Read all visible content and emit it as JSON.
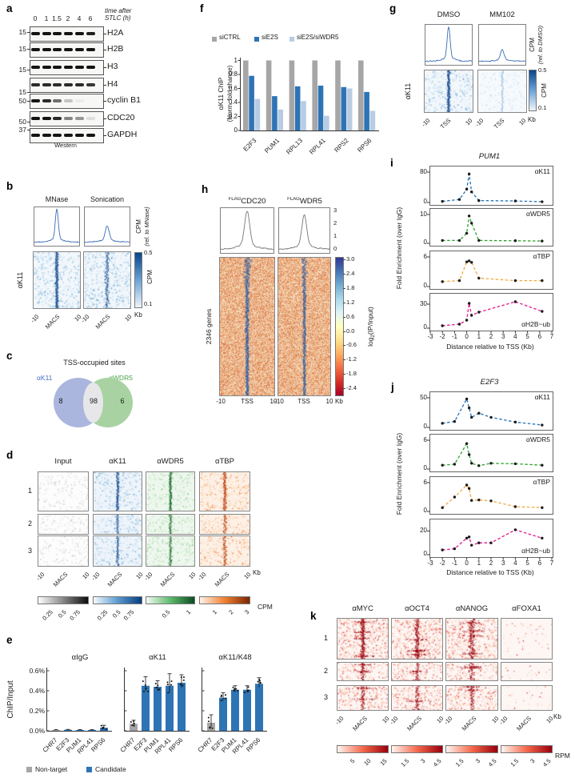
{
  "colors": {
    "bar_gray": "#a6a6a6",
    "bar_blue": "#2e74b5",
    "bar_lightblue": "#b8cce4",
    "line_blue": "#2271b5",
    "line_green": "#2ca02c",
    "line_orange": "#f2a93b",
    "line_magenta": "#e6148c",
    "heat_blue_stripe": "#1a4f8f",
    "heat_green_stripe": "#19692c",
    "heat_orange_stripe": "#b83c0a",
    "heat_red_stripe": "#99000d",
    "h_stripe_blue": "#2c5fa5",
    "profile_blue": "#3a6db5",
    "profile_gray": "#777777",
    "venn_blue_fill": "#aab6dd",
    "venn_green_fill": "#a8d2a2",
    "venn_overlap_fill": "#e7e7ea",
    "venn_blue_text": "#4472c4",
    "venn_green_text": "#47a447"
  },
  "panels": {
    "a": {
      "letter": "a",
      "header1": "time after",
      "header2": "STLC (h)",
      "lanes": [
        "0",
        "1",
        "1.5",
        "2",
        "4",
        "6"
      ],
      "rows": [
        {
          "mw": "15",
          "label": "H2A",
          "bands": [
            1,
            1,
            1,
            1,
            1,
            0.95
          ]
        },
        {
          "mw": "15",
          "label": "H2B",
          "bands": [
            1,
            1,
            1,
            1,
            1,
            1
          ]
        },
        {
          "mw": "15",
          "label": "H3",
          "bands": [
            1,
            1,
            1,
            1,
            1,
            1
          ]
        },
        {
          "mw": "15",
          "label": "H4",
          "bands": [
            0.9,
            0.9,
            0.9,
            0.9,
            0.9,
            0.85
          ]
        },
        {
          "mw": "50",
          "label": "cyclin B1",
          "bands": [
            1,
            0.9,
            0.6,
            0.22,
            0.05,
            0
          ]
        },
        {
          "mw": "50",
          "label": "CDC20",
          "bands": [
            1,
            1,
            0.9,
            0.5,
            0.42,
            0.1
          ]
        },
        {
          "mw": "37",
          "label": "GAPDH",
          "bands": [
            1,
            1,
            1,
            1,
            1,
            1
          ]
        }
      ],
      "footer": "Western"
    },
    "b": {
      "letter": "b",
      "col_titles": [
        "MNase",
        "Sonication"
      ],
      "row_label": "αK11",
      "profile_ylabel1": "CPM",
      "profile_ylabel2": "(rel. to MNase)",
      "colorbar_top": "0.5",
      "colorbar_bottom": "0.1",
      "colorbar_label": "CPM",
      "xticks": [
        "-10",
        "MACS",
        "10"
      ],
      "x_unit": "Kb"
    },
    "c": {
      "letter": "c",
      "title": "TSS-occupied sites",
      "left_label": "αK11",
      "right_label": "αWDR5",
      "left_only": "8",
      "overlap": "98",
      "right_only": "6"
    },
    "d": {
      "letter": "d",
      "col_titles": [
        "Input",
        "αK11",
        "αWDR5",
        "αTBP"
      ],
      "row_labels": [
        "1",
        "2",
        "3"
      ],
      "xticks": [
        "-10",
        "MACS",
        "10"
      ],
      "x_unit": "Kb",
      "colorbar_ticks": [
        [
          "0.25",
          "0.5",
          "0.75"
        ],
        [
          "0.25",
          "0.5",
          "0.75"
        ],
        [
          "0.5",
          "1"
        ],
        [
          "1",
          "2",
          "3"
        ]
      ],
      "colorbar_unit": "CPM"
    },
    "e": {
      "letter": "e"
    },
    "f": {
      "letter": "f",
      "ylabel1": "αK11 ChIP",
      "ylabel2": "(Norm. fold change)"
    },
    "g": {
      "letter": "g",
      "col_titles": [
        "DMSO",
        "MM102"
      ],
      "row_label": "αK11",
      "profile_ylabel1": "CPM",
      "profile_ylabel2": "(rel. to DMSO)",
      "colorbar_top": "0.5",
      "colorbar_bottom": "0.1",
      "colorbar_label": "CPM",
      "xticks": [
        "-10",
        "TSS",
        "10"
      ],
      "x_unit": "Kb"
    },
    "h": {
      "letter": "h",
      "col_titles": [
        {
          "sup": "FLAG",
          "text": "CDC20"
        },
        {
          "sup": "FLAG",
          "text": "WDR5"
        }
      ],
      "profile_yticks": [
        "3",
        "2",
        "1",
        "0"
      ],
      "row_label": "2346 genes",
      "colorbar_ticks": [
        "3.0",
        "2.4",
        "1.8",
        "1.2",
        "0.6",
        "0.0",
        "-0.6",
        "-1.2",
        "-1.8",
        "-2.4"
      ],
      "colorbar_label": {
        "pre": "log",
        "sub": "2",
        "post": "(IP/Input)"
      },
      "xticks": [
        "-10",
        "TSS",
        "10"
      ],
      "x_unit": "Kb"
    },
    "i": {
      "letter": "i"
    },
    "j": {
      "letter": "j"
    },
    "k": {
      "letter": "k",
      "col_titles": [
        "αMYC",
        "αOCT4",
        "αNANOG",
        "αFOXA1"
      ],
      "row_labels": [
        "1",
        "2",
        "3"
      ],
      "xticks": [
        "-10",
        "MACS",
        "10"
      ],
      "x_unit": "Kb",
      "colorbar_ticks": [
        [
          "5",
          "10",
          "15"
        ],
        [
          "1.5",
          "3",
          "4.5"
        ],
        [
          "1.5",
          "3",
          "4.5"
        ],
        [
          "1.5",
          "3",
          "4.5"
        ]
      ],
      "colorbar_unit": "RPM"
    }
  },
  "chart_data": [
    {
      "id": "a",
      "type": "table",
      "title": "Western blot, time after STLC (h)",
      "timepoints_h": [
        0,
        1,
        1.5,
        2,
        4,
        6
      ],
      "proteins": [
        "H2A",
        "H2B",
        "H3",
        "H4",
        "cyclin B1",
        "CDC20",
        "GAPDH"
      ],
      "mw_kda": [
        15,
        15,
        15,
        15,
        50,
        50,
        37
      ],
      "footer": "Western"
    },
    {
      "id": "b",
      "type": "heatmap",
      "columns": [
        "MNase",
        "Sonication"
      ],
      "signal": "αK11",
      "center_label": "MACS",
      "window_kb": [
        -10,
        10
      ],
      "colorbar": {
        "min": 0.1,
        "max": 0.5,
        "unit": "CPM"
      },
      "profile_peak_rel": [
        1.0,
        0.45
      ]
    },
    {
      "id": "c",
      "type": "pie",
      "title": "TSS-occupied sites",
      "sets": [
        {
          "label": "αK11",
          "only": 8
        },
        {
          "label": "αWDR5",
          "only": 6
        }
      ],
      "overlap": 98
    },
    {
      "id": "d",
      "type": "heatmap",
      "columns": [
        "Input",
        "αK11",
        "αWDR5",
        "αTBP"
      ],
      "rows": [
        "1",
        "2",
        "3"
      ],
      "center_label": "MACS",
      "window_kb": [
        -10,
        10
      ],
      "colorbars": [
        {
          "ticks": [
            0.25,
            0.5,
            0.75
          ]
        },
        {
          "ticks": [
            0.25,
            0.5,
            0.75
          ]
        },
        {
          "ticks": [
            0.5,
            1
          ]
        },
        {
          "ticks": [
            1,
            2,
            3
          ]
        }
      ],
      "unit": "CPM"
    },
    {
      "id": "e",
      "type": "bar",
      "ylabel": "ChIP/Input",
      "ylim": [
        0,
        0.6
      ],
      "yticks": [
        "0.6%",
        "0.4%",
        "0.2%",
        "0.0%"
      ],
      "categories": [
        "CHR7",
        "E2F3",
        "PUM1",
        "RPL41",
        "RPS6"
      ],
      "subplots": [
        {
          "title": "αIgG",
          "values": [
            0.008,
            0.01,
            0.008,
            0.008,
            0.03
          ],
          "errors": [
            0.004,
            0.004,
            0.004,
            0.004,
            0.025
          ]
        },
        {
          "title": "αK11",
          "values": [
            0.07,
            0.45,
            0.44,
            0.45,
            0.48
          ],
          "errors": [
            0.035,
            0.09,
            0.06,
            0.12,
            0.08
          ]
        },
        {
          "title": "αK11/K48",
          "values": [
            0.08,
            0.33,
            0.41,
            0.41,
            0.47
          ],
          "errors": [
            0.08,
            0.05,
            0.04,
            0.04,
            0.06
          ]
        }
      ],
      "legend": [
        {
          "label": "Non-target",
          "color": "#a6a6a6"
        },
        {
          "label": "Candidate",
          "color": "#2e74b5"
        }
      ]
    },
    {
      "id": "f",
      "type": "bar",
      "ylabel": "αK11 ChIP (Norm. fold change)",
      "ylim": [
        0,
        1
      ],
      "yticks": [
        "1",
        "0.8",
        "0.6",
        "0.4",
        "0.2",
        "0"
      ],
      "categories": [
        "E2F3",
        "PUM1",
        "RPL13",
        "RPL41",
        "RPS2",
        "RPS6"
      ],
      "series": [
        {
          "name": "siCTRL",
          "color": "#a6a6a6",
          "values": [
            1,
            1,
            1,
            1,
            1,
            1
          ]
        },
        {
          "name": "siE2S",
          "color": "#2e74b5",
          "values": [
            0.78,
            0.49,
            0.63,
            0.64,
            0.62,
            0.55
          ]
        },
        {
          "name": "siE2S/siWDR5",
          "color": "#b8cce4",
          "values": [
            0.45,
            0.3,
            0.42,
            0.21,
            0.6,
            0.28
          ]
        }
      ]
    },
    {
      "id": "g",
      "type": "heatmap",
      "columns": [
        "DMSO",
        "MM102"
      ],
      "signal": "αK11",
      "center_label": "TSS",
      "window_kb": [
        -10,
        10
      ],
      "colorbar": {
        "min": 0.1,
        "max": 0.5,
        "unit": "CPM"
      },
      "profile_peak_rel": [
        1.0,
        0.33
      ]
    },
    {
      "id": "h",
      "type": "heatmap",
      "columns": [
        "FLAG-CDC20",
        "FLAG-WDR5"
      ],
      "rows_label": "2346 genes",
      "center_label": "TSS",
      "window_kb": [
        -10,
        10
      ],
      "profile_ylim": [
        0,
        3
      ],
      "profile_peak": [
        2.7,
        2.3
      ],
      "colorbar": {
        "min": -2.4,
        "max": 3.0,
        "unit": "log2(IP/Input)"
      }
    },
    {
      "id": "i",
      "type": "line",
      "title": "PUM1",
      "xlabel": "Distance relative to TSS (Kb)",
      "ylabel": "Fold Enrichment (over IgG)",
      "xlim": [
        -3,
        7
      ],
      "xticks": [
        -3,
        -2,
        -1,
        0,
        1,
        2,
        3,
        4,
        5,
        6,
        7
      ],
      "x": [
        -2,
        -0.6,
        0,
        0.2,
        0.4,
        1,
        4,
        6.2
      ],
      "subplots": [
        {
          "label": "αK11",
          "color": "#2271b5",
          "ymax": 80,
          "ytick": "80",
          "values": [
            3,
            8,
            35,
            75,
            28,
            5,
            4,
            2
          ]
        },
        {
          "label": "αWDR5",
          "color": "#2ca02c",
          "ymax": 10,
          "ytick": "10",
          "values": [
            1,
            1,
            3.5,
            9.5,
            7,
            1,
            0.9,
            0.8
          ]
        },
        {
          "label": "αTBP",
          "color": "#f2a93b",
          "ymax": 6,
          "ytick": "6",
          "values": [
            1,
            1.2,
            5,
            5.2,
            4.9,
            1.7,
            1.2,
            1.2
          ]
        },
        {
          "label": "αH2B~ub",
          "color": "#e6148c",
          "ymax": 36,
          "ytick": "30",
          "values": [
            3,
            5,
            10,
            31,
            16,
            20,
            33,
            21
          ]
        }
      ]
    },
    {
      "id": "j",
      "type": "line",
      "title": "E2F3",
      "xlabel": "Distance relative to TSS (Kb)",
      "ylabel": "Fold Enrichment (over IgG)",
      "xlim": [
        -3,
        7
      ],
      "xticks": [
        -3,
        -2,
        -1,
        0,
        1,
        2,
        3,
        4,
        5,
        6,
        7
      ],
      "x": [
        -2,
        -1,
        0,
        0.2,
        0.4,
        1,
        2,
        4,
        6.2
      ],
      "subplots": [
        {
          "label": "αK11",
          "color": "#2271b5",
          "ymax": 50,
          "ytick": "50",
          "values": [
            7,
            10,
            48,
            33,
            17,
            24,
            17,
            9,
            4
          ]
        },
        {
          "label": "αWDR5",
          "color": "#2ca02c",
          "ymax": 6,
          "ytick": "6",
          "values": [
            0.8,
            1,
            5.3,
            3,
            1.2,
            0.7,
            1.2,
            1.1,
            0.8
          ]
        },
        {
          "label": "αTBP",
          "color": "#f2a93b",
          "ymax": 6,
          "ytick": "6",
          "values": [
            0.8,
            3,
            5.5,
            4.8,
            2.3,
            2.4,
            2.2,
            1,
            0.8
          ]
        },
        {
          "label": "αH2B~ub",
          "color": "#e6148c",
          "ymax": 25,
          "ytick": "20",
          "values": [
            4,
            5,
            14,
            15,
            8,
            10,
            10,
            21,
            14
          ]
        }
      ]
    },
    {
      "id": "k",
      "type": "heatmap",
      "columns": [
        "αMYC",
        "αOCT4",
        "αNANOG",
        "αFOXA1"
      ],
      "rows": [
        "1",
        "2",
        "3"
      ],
      "center_label": "MACS",
      "window_kb": [
        -10,
        10
      ],
      "colorbars": [
        {
          "ticks": [
            5,
            10,
            15
          ]
        },
        {
          "ticks": [
            1.5,
            3,
            4.5
          ]
        },
        {
          "ticks": [
            1.5,
            3,
            4.5
          ]
        },
        {
          "ticks": [
            1.5,
            3,
            4.5
          ]
        }
      ],
      "unit": "RPM"
    }
  ]
}
